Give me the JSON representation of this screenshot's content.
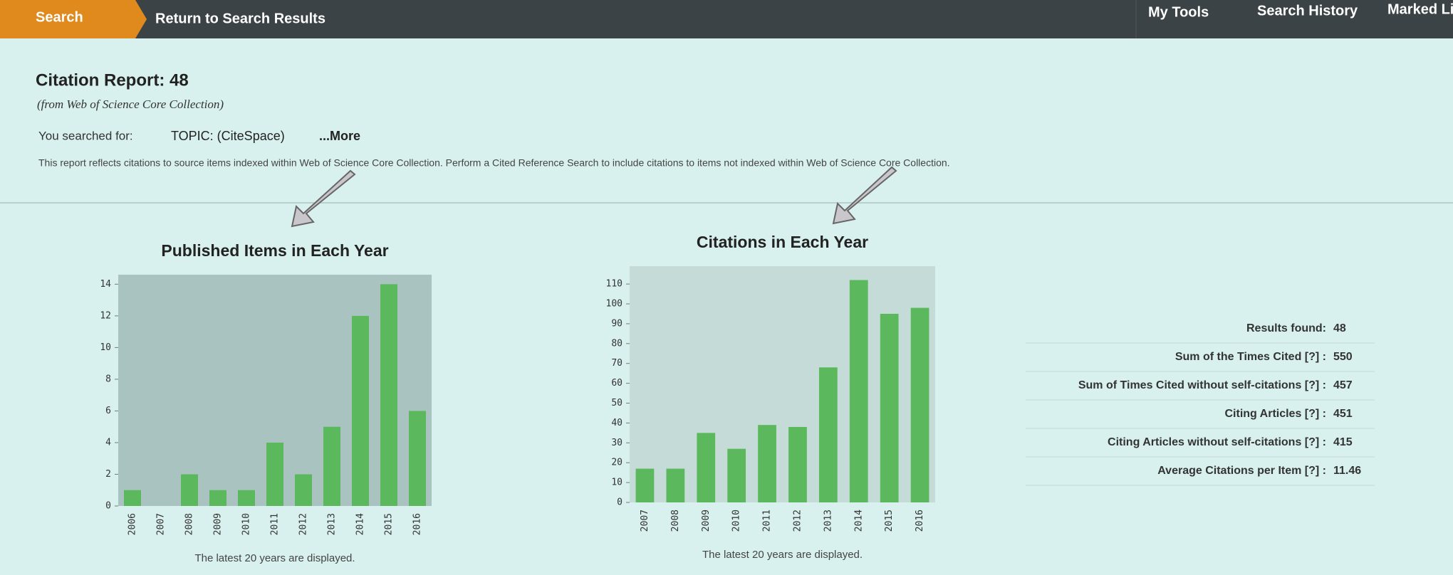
{
  "nav": {
    "search": "Search",
    "return": "Return to Search Results",
    "tools": "My Tools",
    "history": "Search History",
    "marked": "Marked List"
  },
  "report": {
    "title": "Citation Report: 48",
    "source": "(from Web of Science Core Collection)",
    "searched_label": "You searched for:",
    "query": "TOPIC: (CiteSpace)",
    "more": "...More",
    "note": "This report reflects citations to source items indexed within Web of Science Core Collection. Perform a Cited Reference Search to include citations to items not indexed within Web of Science Core Collection."
  },
  "chart_data": [
    {
      "type": "bar",
      "title": "Published Items in Each Year",
      "footer": "The latest 20 years are displayed.",
      "categories": [
        "2006",
        "2007",
        "2008",
        "2009",
        "2010",
        "2011",
        "2012",
        "2013",
        "2014",
        "2015",
        "2016"
      ],
      "values": [
        1,
        0,
        2,
        1,
        1,
        4,
        2,
        5,
        12,
        14,
        6
      ],
      "color": "#5cb85c",
      "ylim": [
        0,
        14.6
      ],
      "yticks": [
        0,
        2,
        4,
        6,
        8,
        10,
        12,
        14
      ]
    },
    {
      "type": "bar",
      "title": "Citations in Each Year",
      "footer": "The latest 20 years are displayed.",
      "categories": [
        "2007",
        "2008",
        "2009",
        "2010",
        "2011",
        "2012",
        "2013",
        "2014",
        "2015",
        "2016"
      ],
      "values": [
        17,
        17,
        35,
        27,
        39,
        38,
        68,
        112,
        95,
        98
      ],
      "color": "#5cb85c",
      "ylim": [
        0,
        119
      ],
      "yticks": [
        0,
        10,
        20,
        30,
        40,
        50,
        60,
        70,
        80,
        90,
        100,
        110
      ]
    }
  ],
  "stats": [
    {
      "label": "Results found:",
      "value": "48"
    },
    {
      "label": "Sum of the Times Cited [?] :",
      "value": "550"
    },
    {
      "label": "Sum of Times Cited without self-citations [?] :",
      "value": "457"
    },
    {
      "label": "Citing Articles [?] :",
      "value": "451"
    },
    {
      "label": "Citing Articles without self-citations [?] :",
      "value": "415"
    },
    {
      "label": "Average Citations per Item [?] :",
      "value": "11.46"
    }
  ]
}
